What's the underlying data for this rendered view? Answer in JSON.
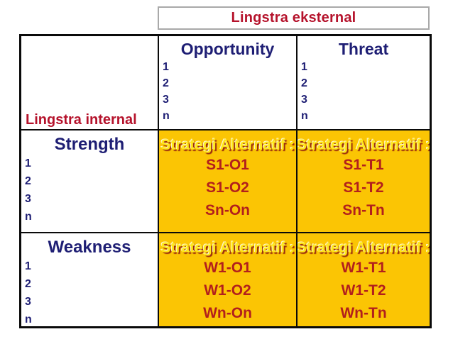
{
  "slide": {
    "external_header": "Lingstra eksternal",
    "internal_header": "Lingstra internal"
  },
  "colors": {
    "navy_text": "#1e1e74",
    "crimson_text": "#b5122b",
    "code_red": "#b21f1d",
    "gold_background": "#fbc504",
    "strategy_heading_yellow": "#ffe81a",
    "border_black": "#0a0a0a",
    "header_border_gray": "#a9a9a9"
  },
  "matrix": {
    "columns": [
      {
        "title": "Opportunity",
        "items": [
          "1",
          "2",
          "3",
          "n"
        ]
      },
      {
        "title": "Threat",
        "items": [
          "1",
          "2",
          "3",
          "n"
        ]
      }
    ],
    "rows": [
      {
        "title": "Strength",
        "items": [
          "1",
          "2",
          "3",
          "n"
        ]
      },
      {
        "title": "Weakness",
        "items": [
          "1",
          "2",
          "3",
          "n"
        ]
      }
    ],
    "cells": [
      {
        "heading": "Strategi Alternatif :",
        "codes": [
          "S1-O1",
          "S1-O2",
          "Sn-On"
        ]
      },
      {
        "heading": "Strategi Alternatif :",
        "codes": [
          "S1-T1",
          "S1-T2",
          "Sn-Tn"
        ]
      },
      {
        "heading": "Strategi Alternatif :",
        "codes": [
          "W1-O1",
          "W1-O2",
          "Wn-On"
        ]
      },
      {
        "heading": "Strategi Alternatif :",
        "codes": [
          "W1-T1",
          "W1-T2",
          "Wn-Tn"
        ]
      }
    ]
  }
}
